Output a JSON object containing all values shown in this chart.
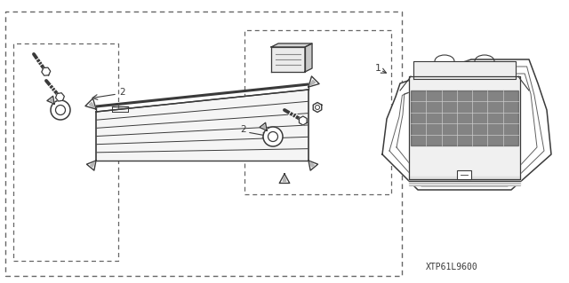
{
  "part_code": "XTP61L9600",
  "bg_color": "#ffffff",
  "line_color": "#3a3a3a",
  "figsize": [
    6.4,
    3.19
  ],
  "dpi": 100,
  "label_1": "1",
  "label_2": "2"
}
